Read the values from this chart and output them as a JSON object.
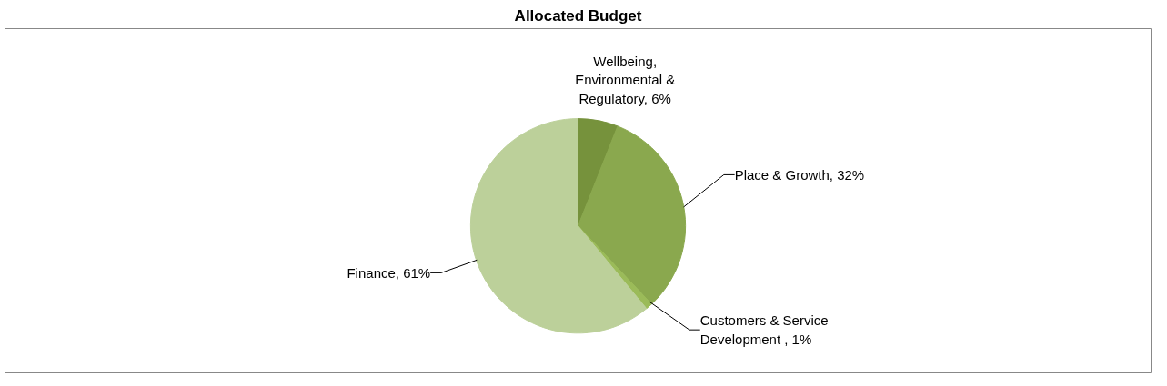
{
  "chart_data": {
    "type": "pie",
    "title": "Allocated Budget",
    "categories": [
      "Wellbeing, Environmental & Regulatory",
      "Place & Growth",
      "Customers & Service Development ",
      "Finance"
    ],
    "values": [
      6,
      32,
      1,
      61
    ],
    "value_labels": [
      "6%",
      "32%",
      "1%",
      "61%"
    ],
    "colors": [
      "#76923c",
      "#8aa84e",
      "#9bbb59",
      "#bcd09a"
    ]
  }
}
